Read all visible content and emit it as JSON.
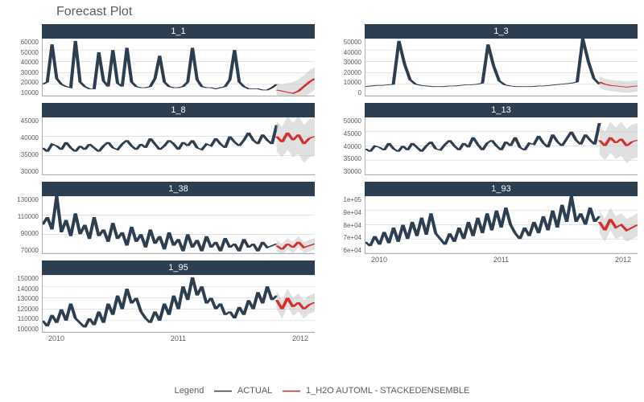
{
  "title": "Forecast Plot",
  "colors": {
    "strip_bg": "#2c3e50",
    "strip_text": "#ffffff",
    "actual_line": "#2c3e50",
    "forecast_line": "#d32f2f",
    "forecast_band": "#cccccc",
    "grid": "#d9d9d9",
    "axis_text": "#5c5c5c",
    "background": "#ffffff"
  },
  "layout": {
    "rows": 4,
    "cols": 2,
    "panel_positions": [
      "1_1",
      "1_3",
      "1_8",
      "1_13",
      "1_38",
      "1_93",
      "1_95",
      null
    ]
  },
  "x_axis": {
    "range": [
      2010,
      2013
    ],
    "ticks": [
      "2010",
      "2011",
      "2012"
    ],
    "show_on_panels": [
      "1_93",
      "1_95"
    ]
  },
  "legend": {
    "title": "Legend",
    "items": [
      {
        "key": "actual",
        "label": "ACTUAL"
      },
      {
        "key": "forecast",
        "label": "1_H2O AUTOML - STACKEDENSEMBLE"
      }
    ]
  },
  "panels": {
    "1_1": {
      "label": "1_1",
      "ylim": [
        10000,
        60000
      ],
      "yticks": [
        "60000",
        "50000",
        "40000",
        "30000",
        "20000",
        "10000"
      ],
      "actual": [
        20000,
        22000,
        55000,
        25000,
        20000,
        18000,
        17000,
        58000,
        22000,
        18000,
        16000,
        16000,
        48000,
        23000,
        18000,
        50000,
        21000,
        18000,
        52000,
        22000,
        18000,
        17000,
        17000,
        18000,
        25000,
        45000,
        22000,
        18000,
        17000,
        17000,
        18000,
        22000,
        52000,
        24000,
        18000,
        17000,
        17000,
        16000,
        17000,
        18000,
        24000,
        50000,
        22000,
        18000,
        16000,
        16000,
        16000,
        15000,
        15000,
        17000,
        20000
      ],
      "forecast": [
        15000,
        14000,
        13000,
        12000,
        14000,
        18000,
        22000,
        25000
      ],
      "forecast_band": [
        6000,
        6000,
        8000,
        10000,
        10000,
        10000,
        10000,
        10000
      ]
    },
    "1_3": {
      "label": "1_3",
      "ylim": [
        0,
        50000
      ],
      "yticks": [
        "50000",
        "40000",
        "30000",
        "20000",
        "10000",
        "0"
      ],
      "actual": [
        8000,
        8500,
        9000,
        9000,
        9500,
        10000,
        48000,
        28000,
        14000,
        10000,
        9000,
        8500,
        8000,
        8000,
        8000,
        8500,
        8500,
        9000,
        9500,
        9500,
        10000,
        11000,
        45000,
        26000,
        13000,
        9500,
        8500,
        8000,
        8000,
        8000,
        8000,
        8500,
        8500,
        9000,
        9500,
        10000,
        10500,
        11000,
        12000,
        50000,
        30000,
        15000,
        10000
      ],
      "forecast": [
        12000,
        10000,
        9000,
        8500,
        8000,
        7500,
        8000,
        8500
      ],
      "forecast_band": [
        5000,
        5000,
        5000,
        5000,
        5000,
        5000,
        5000,
        5000
      ]
    },
    "1_8": {
      "label": "1_8",
      "ylim": [
        30000,
        45000
      ],
      "yticks": [
        "45000",
        "40000",
        "35000",
        "30000"
      ],
      "actual": [
        37000,
        36000,
        38000,
        37500,
        36500,
        38500,
        37000,
        36000,
        37500,
        36500,
        38000,
        37000,
        36000,
        37500,
        38500,
        37000,
        36500,
        38000,
        39000,
        37500,
        36500,
        38000,
        37000,
        39500,
        38000,
        36500,
        37500,
        39000,
        38000,
        36500,
        38500,
        37500,
        39000,
        37000,
        36500,
        38000,
        37500,
        39500,
        38000,
        37000,
        40000,
        38500,
        37500,
        39000,
        41000,
        39000,
        38000,
        40500,
        39000,
        38000,
        43000
      ],
      "forecast": [
        40000,
        38500,
        41000,
        39000,
        40500,
        38000,
        39500,
        40000
      ],
      "forecast_band": [
        4000,
        4000,
        4500,
        4500,
        5000,
        5000,
        5000,
        5000
      ]
    },
    "1_13": {
      "label": "1_13",
      "ylim": [
        30000,
        50000
      ],
      "yticks": [
        "50000",
        "45000",
        "40000",
        "35000",
        "30000"
      ],
      "actual": [
        39000,
        38000,
        40000,
        39500,
        38500,
        41000,
        39000,
        38000,
        40000,
        38500,
        41000,
        39500,
        38000,
        40000,
        41500,
        39000,
        38500,
        40500,
        42000,
        40000,
        38500,
        41000,
        39500,
        43000,
        40500,
        38500,
        41000,
        42000,
        40000,
        38500,
        41500,
        40000,
        43000,
        39500,
        38500,
        41000,
        40500,
        43500,
        41000,
        39500,
        44000,
        41500,
        40000,
        42500,
        45000,
        42000,
        40500,
        44000,
        42000,
        40500,
        48000
      ],
      "forecast": [
        42000,
        40000,
        43000,
        41000,
        42500,
        40000,
        41500,
        42000
      ],
      "forecast_band": [
        5000,
        5000,
        5500,
        5500,
        6000,
        6000,
        6000,
        6000
      ]
    },
    "1_38": {
      "label": "1_38",
      "ylim": [
        70000,
        130000
      ],
      "yticks": [
        "130000",
        "110000",
        "90000",
        "70000"
      ],
      "actual": [
        100000,
        108000,
        95000,
        130000,
        92000,
        105000,
        88000,
        112000,
        90000,
        100000,
        85000,
        108000,
        88000,
        95000,
        82000,
        102000,
        85000,
        92000,
        78000,
        98000,
        82000,
        90000,
        76000,
        95000,
        80000,
        88000,
        74000,
        92000,
        78000,
        85000,
        72000,
        90000,
        76000,
        84000,
        72000,
        88000,
        76000,
        82000,
        72000,
        86000,
        76000,
        80000,
        72000,
        85000,
        76000,
        80000,
        72000,
        82000,
        76000,
        78000,
        80000
      ],
      "forecast": [
        78000,
        74000,
        80000,
        76000,
        82000,
        76000,
        78000,
        80000
      ],
      "forecast_band": [
        6000,
        6000,
        6000,
        6000,
        6000,
        6000,
        6000,
        6000
      ]
    },
    "1_93": {
      "label": "1_93",
      "ylim": [
        60000,
        100000
      ],
      "yticks": [
        "1e+05",
        "9e+04",
        "8e+04",
        "7e+04",
        "6e+04"
      ],
      "actual": [
        68000,
        65000,
        72000,
        66000,
        75000,
        67000,
        78000,
        68000,
        80000,
        70000,
        82000,
        72000,
        85000,
        73000,
        88000,
        74000,
        70000,
        66000,
        74000,
        68000,
        78000,
        70000,
        82000,
        72000,
        85000,
        74000,
        88000,
        76000,
        90000,
        78000,
        92000,
        80000,
        74000,
        70000,
        78000,
        72000,
        82000,
        74000,
        86000,
        76000,
        90000,
        78000,
        94000,
        82000,
        100000,
        82000,
        88000,
        80000,
        92000,
        82000,
        86000
      ],
      "forecast": [
        82000,
        76000,
        84000,
        78000,
        80000,
        76000,
        78000,
        80000
      ],
      "forecast_band": [
        8000,
        8000,
        8000,
        8000,
        8000,
        8000,
        8000,
        8000
      ]
    },
    "1_95": {
      "label": "1_95",
      "ylim": [
        100000,
        150000
      ],
      "yticks": [
        "150000",
        "140000",
        "130000",
        "120000",
        "110000",
        "100000"
      ],
      "actual": [
        110000,
        105000,
        115000,
        108000,
        120000,
        110000,
        125000,
        112000,
        108000,
        104000,
        112000,
        106000,
        118000,
        108000,
        125000,
        115000,
        132000,
        120000,
        138000,
        125000,
        130000,
        118000,
        112000,
        108000,
        118000,
        110000,
        125000,
        115000,
        132000,
        120000,
        140000,
        128000,
        148000,
        132000,
        140000,
        125000,
        130000,
        120000,
        125000,
        115000,
        118000,
        112000,
        122000,
        115000,
        128000,
        120000,
        135000,
        125000,
        140000,
        128000,
        132000
      ],
      "forecast": [
        128000,
        120000,
        130000,
        122000,
        126000,
        120000,
        124000,
        126000
      ],
      "forecast_band": [
        8000,
        8000,
        8000,
        8000,
        8000,
        8000,
        8000,
        8000
      ]
    }
  }
}
